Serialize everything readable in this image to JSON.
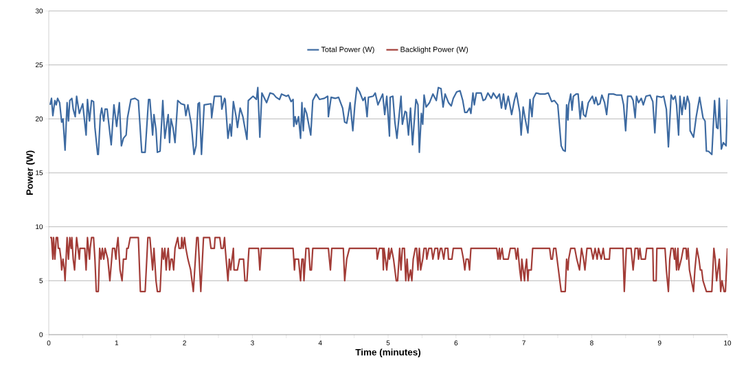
{
  "chart_data": {
    "type": "line",
    "xlabel": "Time (minutes)",
    "ylabel": "Power (W)",
    "xlim": [
      0,
      10
    ],
    "ylim": [
      0,
      30
    ],
    "xticks": [
      0,
      {
        "value": 0.5,
        "label": null
      },
      1,
      {
        "value": 1.5,
        "label": null
      },
      2,
      {
        "value": 2.5,
        "label": null
      },
      3,
      {
        "value": 3.5,
        "label": null
      },
      4,
      {
        "value": 4.5,
        "label": null
      },
      5,
      {
        "value": 5.5,
        "label": null
      },
      6,
      {
        "value": 6.5,
        "label": null
      },
      7,
      {
        "value": 7.5,
        "label": null
      },
      8,
      {
        "value": 8.5,
        "label": null
      },
      9,
      {
        "value": 9.5,
        "label": null
      },
      10
    ],
    "yticks": [
      0,
      5,
      10,
      15,
      20,
      25,
      30
    ],
    "grid": "y",
    "legend": "top",
    "marker": "none",
    "line_style": "solid",
    "series": [
      {
        "name": "Total Power (W)",
        "color": "#3d6aa1",
        "x": [
          0.02,
          0.04,
          0.06,
          0.09,
          0.11,
          0.13,
          0.16,
          0.19,
          0.21,
          0.24,
          0.27,
          0.29,
          0.31,
          0.34,
          0.36,
          0.39,
          0.41,
          0.45,
          0.5,
          0.55,
          0.57,
          0.6,
          0.63,
          0.66,
          0.68,
          0.72,
          0.73,
          0.76,
          0.78,
          0.81,
          0.83,
          0.86,
          0.92,
          0.96,
          1.0,
          1.04,
          1.07,
          1.1,
          1.14,
          1.16,
          1.21,
          1.27,
          1.32,
          1.37,
          1.42,
          1.47,
          1.49,
          1.53,
          1.55,
          1.58,
          1.6,
          1.64,
          1.68,
          1.71,
          1.74,
          1.76,
          1.78,
          1.8,
          1.83,
          1.86,
          1.9,
          1.95,
          2.0,
          2.02,
          2.05,
          2.1,
          2.14,
          2.17,
          2.2,
          2.22,
          2.25,
          2.29,
          2.39,
          2.4,
          2.44,
          2.49,
          2.54,
          2.55,
          2.59,
          2.6,
          2.64,
          2.67,
          2.69,
          2.72,
          2.76,
          2.78,
          2.82,
          2.86,
          2.92,
          2.94,
          3.01,
          3.06,
          3.08,
          3.11,
          3.14,
          3.21,
          3.26,
          3.31,
          3.35,
          3.4,
          3.43,
          3.5,
          3.53,
          3.57,
          3.6,
          3.61,
          3.63,
          3.65,
          3.68,
          3.71,
          3.73,
          3.75,
          3.77,
          3.8,
          3.86,
          3.89,
          3.94,
          3.99,
          4.06,
          4.11,
          4.12,
          4.16,
          4.22,
          4.27,
          4.33,
          4.36,
          4.39,
          4.41,
          4.44,
          4.48,
          4.51,
          4.54,
          4.58,
          4.63,
          4.66,
          4.69,
          4.71,
          4.78,
          4.81,
          4.85,
          4.92,
          4.95,
          4.98,
          5.02,
          5.03,
          5.07,
          5.1,
          5.13,
          5.19,
          5.21,
          5.25,
          5.27,
          5.3,
          5.33,
          5.36,
          5.39,
          5.41,
          5.44,
          5.46,
          5.49,
          5.51,
          5.53,
          5.56,
          5.61,
          5.66,
          5.71,
          5.74,
          5.78,
          5.81,
          5.84,
          5.89,
          5.93,
          5.96,
          6.01,
          6.06,
          6.1,
          6.13,
          6.16,
          6.2,
          6.22,
          6.25,
          6.27,
          6.3,
          6.37,
          6.4,
          6.43,
          6.47,
          6.52,
          6.55,
          6.6,
          6.64,
          6.67,
          6.7,
          6.73,
          6.77,
          6.82,
          6.86,
          6.89,
          6.94,
          6.96,
          6.99,
          7.02,
          7.06,
          7.09,
          7.12,
          7.14,
          7.18,
          7.24,
          7.31,
          7.36,
          7.41,
          7.45,
          7.5,
          7.55,
          7.58,
          7.61,
          7.63,
          7.65,
          7.66,
          7.69,
          7.71,
          7.73,
          7.77,
          7.8,
          7.83,
          7.86,
          7.88,
          7.91,
          7.95,
          7.99,
          8.01,
          8.04,
          8.06,
          8.09,
          8.12,
          8.15,
          8.19,
          8.22,
          8.25,
          8.32,
          8.37,
          8.44,
          8.47,
          8.5,
          8.53,
          8.58,
          8.61,
          8.64,
          8.66,
          8.69,
          8.73,
          8.76,
          8.8,
          8.86,
          8.9,
          8.93,
          8.96,
          9.03,
          9.06,
          9.1,
          9.13,
          9.17,
          9.2,
          9.23,
          9.25,
          9.28,
          9.3,
          9.33,
          9.36,
          9.38,
          9.41,
          9.44,
          9.45,
          9.5,
          9.54,
          9.59,
          9.64,
          9.67,
          9.69,
          9.72,
          9.77,
          9.81,
          9.84,
          9.86,
          9.88,
          9.91,
          9.94,
          9.98,
          10.0
        ],
        "values": [
          21.3,
          21.9,
          20.3,
          21.7,
          21.3,
          21.9,
          21.5,
          19.7,
          20.0,
          17.1,
          21.5,
          19.8,
          21.7,
          21.9,
          20.9,
          20.2,
          22.1,
          20.5,
          21.4,
          18.5,
          21.8,
          19.8,
          21.7,
          21.6,
          19.2,
          16.7,
          16.7,
          20.3,
          21.0,
          19.8,
          20.9,
          20.9,
          17.6,
          21.3,
          19.3,
          21.5,
          17.5,
          18.2,
          18.5,
          20.1,
          21.8,
          21.9,
          21.7,
          16.9,
          16.9,
          21.8,
          21.8,
          18.5,
          20.4,
          19.0,
          16.9,
          17.0,
          21.7,
          18.2,
          19.6,
          20.4,
          17.8,
          20.0,
          19.2,
          17.8,
          21.7,
          21.4,
          21.3,
          20.3,
          21.3,
          19.5,
          16.7,
          17.5,
          21.4,
          21.5,
          16.7,
          21.3,
          21.4,
          20.1,
          22.1,
          22.1,
          22.1,
          20.9,
          21.9,
          21.8,
          18.2,
          19.5,
          18.4,
          21.6,
          20.2,
          19.2,
          21.0,
          20.2,
          18.1,
          21.7,
          22.1,
          21.8,
          22.9,
          18.3,
          22.4,
          21.5,
          22.4,
          22.3,
          22.0,
          21.8,
          22.3,
          22.1,
          22.2,
          21.6,
          21.8,
          19.3,
          20.2,
          19.5,
          20.2,
          18.2,
          21.5,
          18.9,
          21.0,
          20.5,
          18.5,
          21.7,
          22.3,
          21.8,
          21.9,
          22.1,
          20.2,
          22.0,
          21.9,
          22.0,
          21.0,
          19.7,
          19.6,
          20.3,
          21.5,
          18.9,
          21.3,
          22.9,
          22.5,
          21.7,
          22.0,
          20.2,
          22.0,
          22.1,
          22.4,
          21.3,
          22.3,
          20.4,
          22.1,
          18.4,
          22.0,
          22.1,
          19.7,
          18.2,
          22.1,
          19.5,
          20.7,
          20.6,
          18.5,
          21.0,
          17.6,
          20.2,
          21.8,
          21.3,
          16.9,
          20.5,
          19.5,
          22.2,
          21.1,
          21.5,
          22.3,
          21.7,
          22.9,
          22.8,
          21.1,
          22.3,
          21.5,
          21.2,
          21.9,
          22.5,
          22.6,
          21.7,
          20.6,
          20.6,
          21.0,
          20.5,
          22.4,
          21.3,
          22.4,
          22.4,
          21.7,
          21.8,
          22.4,
          21.9,
          22.4,
          21.9,
          22.3,
          21.0,
          22.3,
          20.9,
          22.1,
          20.4,
          21.7,
          22.4,
          20.6,
          18.5,
          21.1,
          20.0,
          18.7,
          21.8,
          20.2,
          21.9,
          22.4,
          22.3,
          22.3,
          22.4,
          21.6,
          21.7,
          21.3,
          17.5,
          17.1,
          17.0,
          21.3,
          19.9,
          21.3,
          22.3,
          20.8,
          22.1,
          22.3,
          22.3,
          20.0,
          21.6,
          20.4,
          20.2,
          21.5,
          21.9,
          22.1,
          21.4,
          22.0,
          21.3,
          21.4,
          22.2,
          21.5,
          20.4,
          22.3,
          22.3,
          22.2,
          22.2,
          21.3,
          18.9,
          22.1,
          22.1,
          21.7,
          20.1,
          22.1,
          21.5,
          21.9,
          21.3,
          22.1,
          22.2,
          21.6,
          18.7,
          22.1,
          22.0,
          22.1,
          20.9,
          17.4,
          22.2,
          21.8,
          22.1,
          21.3,
          18.5,
          22.1,
          20.4,
          22.0,
          20.9,
          22.1,
          21.4,
          18.9,
          18.3,
          20.2,
          22.0,
          20.1,
          19.8,
          17.0,
          17.0,
          16.7,
          21.7,
          19.2,
          19.1,
          21.9,
          17.2,
          17.8,
          17.5,
          21.8
        ]
      },
      {
        "name": "Backlight Power (W)",
        "color": "#a23c37",
        "x": [
          0.02,
          0.04,
          0.06,
          0.07,
          0.09,
          0.11,
          0.13,
          0.14,
          0.16,
          0.18,
          0.19,
          0.21,
          0.23,
          0.24,
          0.27,
          0.29,
          0.31,
          0.33,
          0.34,
          0.36,
          0.38,
          0.4,
          0.41,
          0.43,
          0.45,
          0.46,
          0.5,
          0.53,
          0.55,
          0.57,
          0.6,
          0.61,
          0.63,
          0.66,
          0.68,
          0.7,
          0.73,
          0.75,
          0.77,
          0.79,
          0.81,
          0.83,
          0.87,
          0.9,
          0.94,
          0.97,
          0.99,
          1.0,
          1.02,
          1.05,
          1.08,
          1.1,
          1.14,
          1.15,
          1.17,
          1.2,
          1.32,
          1.35,
          1.42,
          1.46,
          1.49,
          1.53,
          1.55,
          1.58,
          1.6,
          1.64,
          1.67,
          1.69,
          1.71,
          1.73,
          1.74,
          1.76,
          1.78,
          1.8,
          1.82,
          1.84,
          1.86,
          1.9,
          1.92,
          1.95,
          1.96,
          1.98,
          2.0,
          2.02,
          2.05,
          2.09,
          2.13,
          2.18,
          2.2,
          2.24,
          2.28,
          2.37,
          2.39,
          2.44,
          2.45,
          2.52,
          2.54,
          2.57,
          2.59,
          2.6,
          2.64,
          2.66,
          2.68,
          2.7,
          2.72,
          2.73,
          2.76,
          2.78,
          2.81,
          2.87,
          2.89,
          2.92,
          2.95,
          3.09,
          3.11,
          3.13,
          3.6,
          3.62,
          3.63,
          3.68,
          3.71,
          3.73,
          3.75,
          3.76,
          3.79,
          3.83,
          3.85,
          3.87,
          3.89,
          4.12,
          4.15,
          4.17,
          4.34,
          4.36,
          4.39,
          4.43,
          4.83,
          4.84,
          4.87,
          4.92,
          4.93,
          4.94,
          4.98,
          5.01,
          5.02,
          5.05,
          5.08,
          5.1,
          5.12,
          5.14,
          5.17,
          5.19,
          5.21,
          5.24,
          5.26,
          5.28,
          5.3,
          5.33,
          5.35,
          5.37,
          5.4,
          5.42,
          5.44,
          5.46,
          5.48,
          5.51,
          5.53,
          5.56,
          5.57,
          5.6,
          5.64,
          5.66,
          5.69,
          5.73,
          5.74,
          5.77,
          5.79,
          5.82,
          5.84,
          5.88,
          5.89,
          5.94,
          5.96,
          6.08,
          6.11,
          6.13,
          6.15,
          6.18,
          6.2,
          6.22,
          6.25,
          6.6,
          6.62,
          6.64,
          6.65,
          6.68,
          6.7,
          6.77,
          6.8,
          6.87,
          6.89,
          6.91,
          6.94,
          6.96,
          6.97,
          6.99,
          7.01,
          7.02,
          7.04,
          7.06,
          7.07,
          7.11,
          7.13,
          7.38,
          7.4,
          7.42,
          7.44,
          7.47,
          7.55,
          7.58,
          7.61,
          7.63,
          7.65,
          7.66,
          7.69,
          7.72,
          7.75,
          7.78,
          7.82,
          7.85,
          7.88,
          7.9,
          7.93,
          7.99,
          8.02,
          8.05,
          8.08,
          8.1,
          8.14,
          8.17,
          8.19,
          8.26,
          8.27,
          8.46,
          8.48,
          8.51,
          8.58,
          8.61,
          8.64,
          8.68,
          8.69,
          8.71,
          8.73,
          8.79,
          8.81,
          8.9,
          8.91,
          8.95,
          8.96,
          9.08,
          9.1,
          9.13,
          9.15,
          9.17,
          9.2,
          9.22,
          9.23,
          9.25,
          9.27,
          9.28,
          9.32,
          9.35,
          9.39,
          9.4,
          9.42,
          9.44,
          9.47,
          9.5,
          9.52,
          9.55,
          9.58,
          9.6,
          9.62,
          9.64,
          9.69,
          9.77,
          9.8,
          9.82,
          9.84,
          9.86,
          9.88,
          9.9,
          9.92,
          9.95,
          9.97,
          10.0
        ],
        "values": [
          9,
          9,
          7,
          9,
          7,
          9,
          9,
          8,
          8,
          7,
          6,
          7,
          6,
          5,
          9,
          7,
          9,
          8,
          9,
          7,
          6,
          8,
          9,
          8,
          7,
          8,
          8,
          8,
          6,
          9,
          7,
          8,
          9,
          9,
          7,
          4,
          4,
          8,
          7,
          8,
          7,
          8,
          7,
          5,
          8,
          8,
          7,
          8,
          9,
          6,
          5,
          7,
          7,
          8,
          8,
          9,
          9,
          4,
          4,
          9,
          9,
          6,
          8,
          5,
          4,
          4,
          8,
          7,
          8,
          6,
          7,
          8,
          6,
          7,
          7,
          6,
          8,
          9,
          8,
          8,
          9,
          8,
          9,
          8,
          7,
          6,
          4,
          9,
          9,
          4,
          9,
          9,
          8,
          8,
          9,
          9,
          8,
          8,
          9,
          8,
          5,
          7,
          6,
          7,
          8,
          6,
          6,
          6,
          7,
          7,
          5,
          5,
          8,
          8,
          6,
          8,
          8,
          6,
          7,
          7,
          5,
          7,
          7,
          5,
          8,
          8,
          6,
          6,
          8,
          8,
          6,
          8,
          8,
          5,
          7,
          8,
          8,
          7,
          8,
          8,
          6,
          8,
          6,
          8,
          7,
          8,
          7,
          6,
          5,
          5,
          8,
          6,
          8,
          8,
          5,
          7,
          5,
          6,
          5,
          7,
          8,
          8,
          6,
          8,
          6,
          7,
          8,
          8,
          7,
          8,
          8,
          7,
          8,
          8,
          7,
          8,
          8,
          7,
          8,
          8,
          7,
          7,
          8,
          8,
          7,
          6,
          7,
          7,
          6,
          8,
          8,
          8,
          7,
          8,
          7,
          8,
          7,
          7,
          8,
          8,
          7,
          8,
          6,
          5,
          7,
          6,
          5,
          6,
          7,
          5,
          6,
          6,
          8,
          8,
          7,
          7,
          8,
          8,
          4,
          4,
          4,
          7,
          6,
          7,
          8,
          8,
          8,
          7,
          6,
          8,
          7,
          6,
          8,
          8,
          7,
          8,
          7,
          8,
          7,
          8,
          7,
          7,
          8,
          8,
          4,
          8,
          8,
          6,
          8,
          8,
          7,
          8,
          7,
          7,
          8,
          8,
          5,
          5,
          8,
          8,
          6,
          4,
          7,
          8,
          8,
          7,
          8,
          6,
          8,
          6,
          7,
          8,
          8,
          7,
          8,
          6,
          5,
          4,
          6,
          8,
          7,
          6,
          6,
          5,
          4,
          4,
          8,
          7,
          5,
          6,
          7,
          4,
          5,
          4,
          4,
          8
        ]
      }
    ]
  }
}
